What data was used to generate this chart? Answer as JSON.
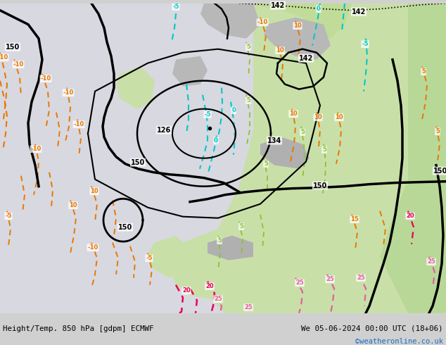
{
  "title_left": "Height/Temp. 850 hPa [gdpm] ECMWF",
  "title_right": "We 05-06-2024 00:00 UTC (18+06)",
  "watermark": "©weatheronline.co.uk",
  "fig_width": 6.34,
  "fig_height": 4.9,
  "dpi": 100,
  "watermark_color": "#1a6fc4",
  "bg_ocean": "#d8d8e8",
  "bg_land_light": "#c8e0b0",
  "bg_land_medium": "#b8d898",
  "bg_gray": "#b8b8b8",
  "bg_white_area": "#e8e8e8"
}
